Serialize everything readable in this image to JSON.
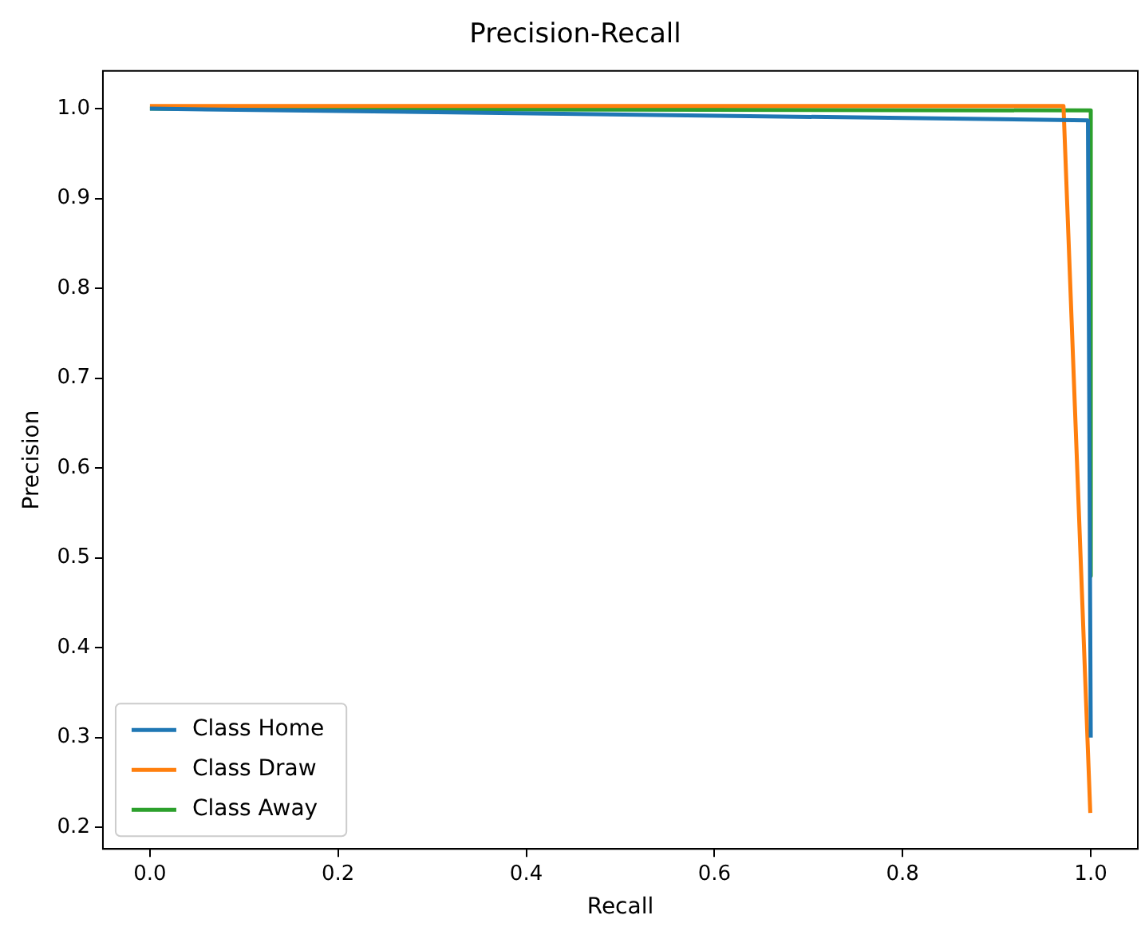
{
  "chart_data": {
    "type": "line",
    "title": "Precision-Recall",
    "xlabel": "Recall",
    "ylabel": "Precision",
    "series": [
      {
        "name": "Class Home",
        "color": "#1f77b4",
        "x": [
          0,
          0.997,
          1.0
        ],
        "values": [
          1.0,
          0.987,
          0.3
        ]
      },
      {
        "name": "Class Draw",
        "color": "#ff7f0e",
        "x": [
          0,
          0.971,
          0.9995
        ],
        "values": [
          1.003,
          1.003,
          0.216
        ]
      },
      {
        "name": "Class Away",
        "color": "#2ca02c",
        "x": [
          0,
          1.0,
          1.0
        ],
        "values": [
          1.0,
          0.998,
          0.48
        ]
      }
    ],
    "xlim": [
      -0.05,
      1.05
    ],
    "xticks": [
      {
        "value": 0,
        "label": "0.0"
      },
      0.2,
      0.4,
      0.6,
      0.8,
      {
        "value": 1,
        "label": "1.0"
      }
    ],
    "ylim": [
      0.176,
      1.042
    ],
    "yticks": [
      0.2,
      0.3,
      0.4,
      0.5,
      0.6,
      0.7,
      0.8,
      0.9,
      {
        "value": 1,
        "label": "1.0"
      }
    ],
    "grid": false,
    "legend": "bottom left",
    "marker": "none",
    "line_style": "solid"
  }
}
